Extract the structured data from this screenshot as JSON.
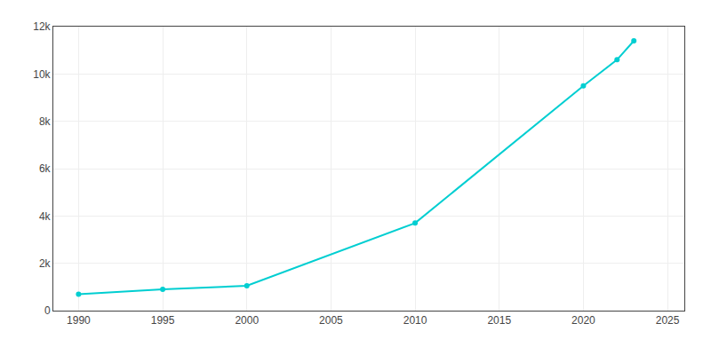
{
  "chart_data": {
    "type": "line",
    "x": [
      1990,
      1995,
      2000,
      2010,
      2020,
      2022,
      2023
    ],
    "values": [
      698,
      900,
      1050,
      3700,
      9500,
      10600,
      11400
    ],
    "color": "#00CED1",
    "marker": "circle",
    "xlim": [
      1988.5,
      2026
    ],
    "ylim": [
      0,
      12000
    ],
    "xticks": [
      1990,
      1995,
      2000,
      2005,
      2010,
      2015,
      2020,
      2025
    ],
    "yticks": [
      0,
      {
        "value": 2000,
        "label": "2k"
      },
      {
        "value": 4000,
        "label": "4k"
      },
      {
        "value": 6000,
        "label": "6k"
      },
      {
        "value": 8000,
        "label": "8k"
      },
      {
        "value": 10000,
        "label": "10k"
      },
      {
        "value": 12000,
        "label": "12k"
      }
    ],
    "grid": true
  }
}
